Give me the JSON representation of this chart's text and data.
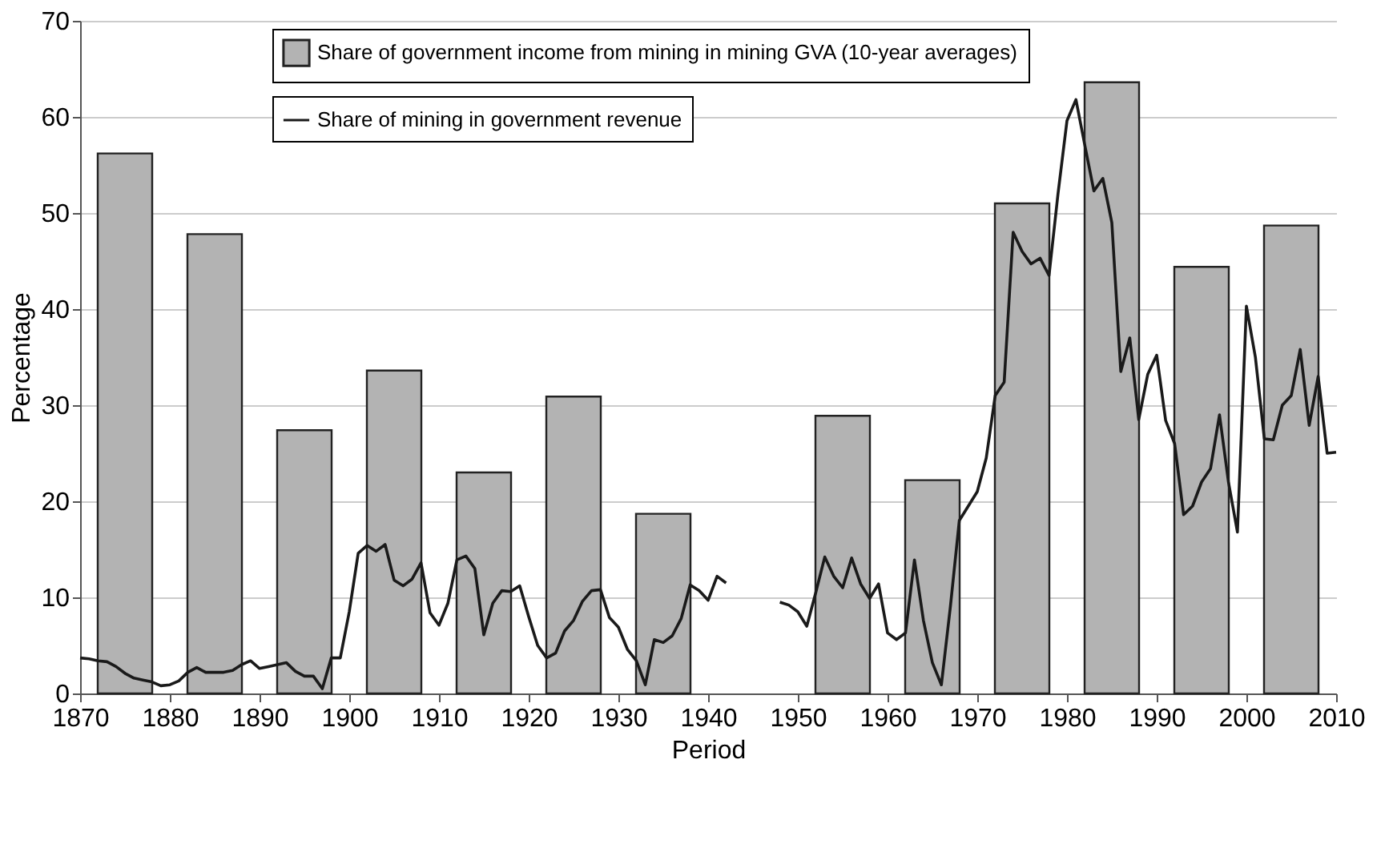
{
  "chart_data": {
    "type": "bar",
    "xlabel": "Period",
    "ylabel": "Percentage",
    "xlim": [
      1870,
      2010
    ],
    "xticks": [
      1870,
      1880,
      1890,
      1900,
      1910,
      1920,
      1930,
      1940,
      1950,
      1960,
      1970,
      1980,
      1990,
      2000,
      2010
    ],
    "ylim": [
      0,
      70
    ],
    "yticks": [
      0,
      10,
      20,
      30,
      40,
      50,
      60,
      70
    ],
    "grid": "y",
    "legend": "top left",
    "series": [
      {
        "name": "Share of government income from mining in mining GVA (10-year averages)",
        "color": "#b3b3b3",
        "x": [
          1875,
          1885,
          1895,
          1905,
          1915,
          1925,
          1935,
          1955,
          1965,
          1975,
          1985,
          1995,
          2005
        ],
        "values": [
          56.2,
          47.8,
          27.4,
          33.6,
          23.0,
          30.9,
          18.7,
          28.9,
          22.2,
          51.0,
          63.6,
          44.4,
          48.7
        ]
      },
      {
        "name": "Share of mining in government revenue",
        "type": "line",
        "color": "#1a1a1a",
        "x": [
          1870,
          1871,
          1872,
          1873,
          1874,
          1875,
          1876,
          1877,
          1878,
          1879,
          1880,
          1881,
          1882,
          1883,
          1884,
          1885,
          1886,
          1887,
          1888,
          1889,
          1890,
          1891,
          1892,
          1893,
          1894,
          1895,
          1896,
          1897,
          1898,
          1899,
          1900,
          1901,
          1902,
          1903,
          1904,
          1905,
          1906,
          1907,
          1908,
          1909,
          1910,
          1911,
          1912,
          1913,
          1914,
          1915,
          1916,
          1917,
          1918,
          1919,
          1920,
          1921,
          1922,
          1923,
          1924,
          1925,
          1926,
          1927,
          1928,
          1929,
          1930,
          1931,
          1932,
          1933,
          1934,
          1935,
          1936,
          1937,
          1938,
          1939,
          1940,
          1941,
          1942,
          1945,
          1948,
          1949,
          1950,
          1951,
          1952,
          1953,
          1954,
          1955,
          1956,
          1957,
          1958,
          1959,
          1960,
          1961,
          1962,
          1963,
          1964,
          1965,
          1966,
          1967,
          1968,
          1969,
          1970,
          1971,
          1972,
          1973,
          1974,
          1975,
          1976,
          1977,
          1978,
          1979,
          1980,
          1981,
          1982,
          1983,
          1984,
          1985,
          1986,
          1987,
          1988,
          1989,
          1990,
          1991,
          1992,
          1993,
          1994,
          1995,
          1996,
          1997,
          1998,
          1999,
          2000,
          2001,
          2002,
          2003,
          2004,
          2005,
          2006,
          2007,
          2008,
          2009,
          2010
        ],
        "values": [
          3.7,
          3.6,
          3.4,
          3.3,
          2.8,
          2.1,
          1.6,
          1.4,
          1.2,
          0.8,
          0.9,
          1.3,
          2.2,
          2.7,
          2.2,
          2.2,
          2.2,
          2.4,
          3.0,
          3.4,
          2.6,
          2.8,
          3.0,
          3.2,
          2.3,
          1.8,
          1.8,
          0.5,
          3.7,
          3.7,
          8.5,
          14.6,
          15.4,
          14.8,
          15.5,
          11.8,
          11.2,
          11.9,
          13.6,
          8.4,
          7.1,
          9.4,
          13.9,
          14.3,
          13.0,
          6.1,
          9.4,
          10.7,
          10.6,
          11.2,
          8.0,
          5.0,
          3.7,
          4.2,
          6.5,
          7.6,
          9.6,
          10.7,
          10.8,
          7.9,
          6.9,
          4.6,
          3.4,
          0.9,
          5.6,
          5.3,
          6.0,
          7.8,
          11.3,
          10.7,
          9.7,
          12.2,
          11.5,
          null,
          9.5,
          9.2,
          8.5,
          7.0,
          10.5,
          14.2,
          12.2,
          11.0,
          14.1,
          11.4,
          9.9,
          11.4,
          6.3,
          5.6,
          6.3,
          13.9,
          7.6,
          3.2,
          0.9,
          9.0,
          18.0,
          19.5,
          21.0,
          24.5,
          31.0,
          32.4,
          48.0,
          46.0,
          44.7,
          45.3,
          43.5,
          52.0,
          59.6,
          61.8,
          57.0,
          52.3,
          53.6,
          49.0,
          33.5,
          37.0,
          28.5,
          33.2,
          35.2,
          28.4,
          26.0,
          18.6,
          19.5,
          22.0,
          23.4,
          29.0,
          22.0,
          16.8,
          40.3,
          35.0,
          26.5,
          26.4,
          30.0,
          31.0,
          35.8,
          27.9,
          33.0,
          25.0,
          25.1
        ]
      }
    ]
  }
}
